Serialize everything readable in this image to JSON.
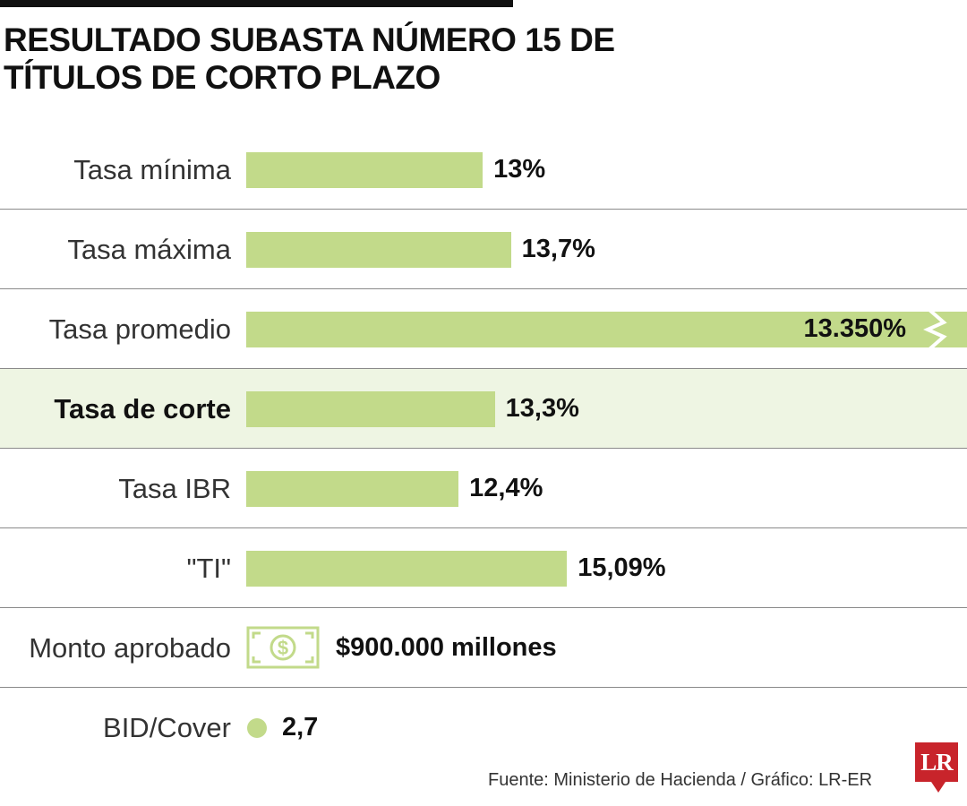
{
  "title": "RESULTADO SUBASTA NÚMERO 15 DE TÍTULOS DE CORTO PLAZO",
  "chart_data": {
    "type": "bar",
    "orientation": "horizontal",
    "categories": [
      "Tasa mínima",
      "Tasa máxima",
      "Tasa promedio",
      "Tasa de corte",
      "Tasa IBR",
      "\"TI\""
    ],
    "values": [
      13,
      13.7,
      13.35,
      13.3,
      12.4,
      15.09
    ],
    "value_labels": [
      "13%",
      "13,7%",
      "13.350%",
      "13,3%",
      "12,4%",
      "15,09%"
    ],
    "highlight": "Tasa de corte",
    "axis_broken_category": "Tasa promedio",
    "bar_color": "#c2da8a",
    "grid": false
  },
  "extra_rows": {
    "monto": {
      "label": "Monto aprobado",
      "icon": "money-bill-icon",
      "value": "$900.000 millones"
    },
    "bid_cover": {
      "label": "BID/Cover",
      "value": "2,7"
    }
  },
  "colors": {
    "bar": "#c2da8a",
    "highlight_bg": "#eef5e3",
    "logo": "#c8242b"
  },
  "source": "Fuente: Ministerio de Hacienda / Gráfico: LR-ER",
  "logo": {
    "text": "LR"
  }
}
